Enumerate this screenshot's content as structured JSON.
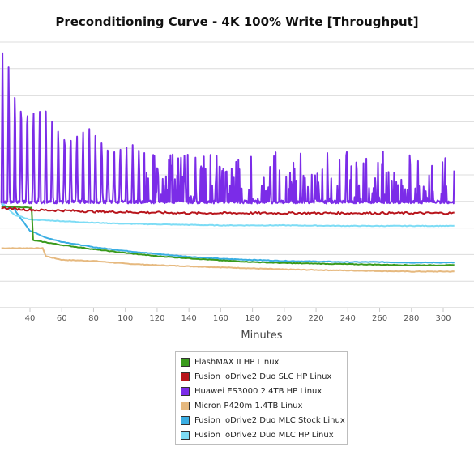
{
  "chart_data": {
    "type": "line",
    "title": "Preconditioning Curve - 4K 100% Write [Throughput]",
    "xlabel": "Minutes",
    "ylabel": "",
    "x_ticks": [
      40,
      60,
      80,
      100,
      120,
      140,
      160,
      180,
      200,
      220,
      240,
      260,
      280,
      300
    ],
    "xlim": [
      22,
      307
    ],
    "ylim": [
      0,
      500
    ],
    "grid": true,
    "legend_position": "bottom-center",
    "series": [
      {
        "name": "FlashMAX II HP Linux",
        "color": "#3a9a1c",
        "points": [
          [
            22,
            190
          ],
          [
            30,
            190
          ],
          [
            41,
            188
          ],
          [
            42,
            127
          ],
          [
            60,
            118
          ],
          [
            80,
            110
          ],
          [
            100,
            103
          ],
          [
            120,
            97
          ],
          [
            140,
            93
          ],
          [
            160,
            89
          ],
          [
            180,
            86
          ],
          [
            200,
            84
          ],
          [
            220,
            83
          ],
          [
            240,
            82
          ],
          [
            260,
            81
          ],
          [
            280,
            80
          ],
          [
            307,
            80
          ]
        ]
      },
      {
        "name": "Fusion ioDrive2 Duo SLC HP Linux",
        "color": "#b8151c",
        "baseline": 182,
        "noise": 4,
        "points": [
          [
            22,
            188
          ],
          [
            40,
            184
          ],
          [
            60,
            183
          ],
          [
            80,
            181
          ],
          [
            100,
            180
          ],
          [
            140,
            178
          ],
          [
            200,
            178
          ],
          [
            260,
            178
          ],
          [
            307,
            178
          ]
        ]
      },
      {
        "name": "Huawei ES3000 2.4TB HP Linux",
        "color": "#7b2ce8",
        "floor": 196,
        "spike_peaks": [
          [
            22,
            480
          ],
          [
            26,
            480
          ],
          [
            30,
            430
          ],
          [
            40,
            400
          ],
          [
            50,
            370
          ],
          [
            60,
            350
          ],
          [
            80,
            335
          ],
          [
            100,
            310
          ],
          [
            120,
            295
          ],
          [
            160,
            295
          ],
          [
            200,
            295
          ],
          [
            240,
            295
          ],
          [
            280,
            295
          ],
          [
            307,
            295
          ]
        ]
      },
      {
        "name": "Micron P420m 1.4TB Linux",
        "color": "#e6b97f",
        "points": [
          [
            22,
            112
          ],
          [
            30,
            112
          ],
          [
            48,
            112
          ],
          [
            50,
            97
          ],
          [
            60,
            90
          ],
          [
            80,
            88
          ],
          [
            100,
            83
          ],
          [
            120,
            80
          ],
          [
            140,
            78
          ],
          [
            160,
            76
          ],
          [
            180,
            74
          ],
          [
            200,
            72
          ],
          [
            220,
            71
          ],
          [
            240,
            70
          ],
          [
            260,
            69
          ],
          [
            280,
            68
          ],
          [
            307,
            68
          ]
        ]
      },
      {
        "name": "Fusion ioDrive2 Duo MLC Stock Linux",
        "color": "#3aaee3",
        "points": [
          [
            22,
            195
          ],
          [
            30,
            185
          ],
          [
            40,
            145
          ],
          [
            50,
            132
          ],
          [
            60,
            124
          ],
          [
            80,
            114
          ],
          [
            100,
            107
          ],
          [
            120,
            101
          ],
          [
            140,
            96
          ],
          [
            160,
            92
          ],
          [
            180,
            90
          ],
          [
            200,
            88
          ],
          [
            220,
            87
          ],
          [
            240,
            86
          ],
          [
            260,
            86
          ],
          [
            280,
            85
          ],
          [
            307,
            85
          ]
        ]
      },
      {
        "name": "Fusion ioDrive2 Duo MLC HP Linux",
        "color": "#7ddcf5",
        "points": [
          [
            22,
            198
          ],
          [
            30,
            175
          ],
          [
            40,
            166
          ],
          [
            60,
            163
          ],
          [
            80,
            160
          ],
          [
            100,
            158
          ],
          [
            120,
            157
          ],
          [
            140,
            156
          ],
          [
            160,
            155
          ],
          [
            180,
            155
          ],
          [
            200,
            155
          ],
          [
            240,
            154
          ],
          [
            280,
            154
          ],
          [
            307,
            154
          ]
        ]
      }
    ]
  }
}
